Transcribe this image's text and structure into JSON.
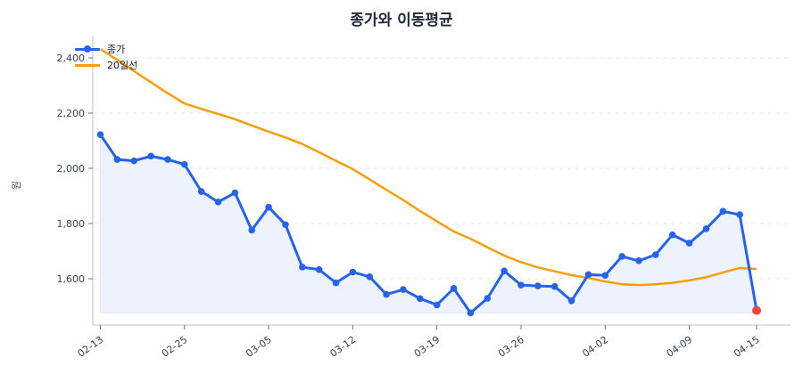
{
  "title": "종가와 이동평균",
  "legend": {
    "items": [
      {
        "label": "종가",
        "color": "#2563eb",
        "marker": "circle"
      },
      {
        "label": "20일선",
        "color": "#f59e0b",
        "marker": "none"
      }
    ]
  },
  "colors": {
    "close": "#2563eb",
    "ma": "#f59e0b",
    "fill": "#eef2fd",
    "last_point": "#ef4444",
    "grid": "#e5e7eb",
    "axis": "#d1d5db"
  },
  "chart_data": {
    "type": "line",
    "title": "종가와 이동평균",
    "xlabel": "",
    "ylabel": "원",
    "ylim": [
      1440,
      2480
    ],
    "yticks": [
      1600,
      1800,
      2000,
      2200,
      2400
    ],
    "ytick_labels": [
      "1,600",
      "1,800",
      "2,000",
      "2,200",
      "2,400"
    ],
    "xtick_labels": [
      "02-13",
      "02-25",
      "03-05",
      "03-12",
      "03-19",
      "03-26",
      "04-02",
      "04-09",
      "04-15"
    ],
    "xtick_index": [
      0,
      5,
      10,
      15,
      20,
      25,
      30,
      35,
      39
    ],
    "grid": true,
    "grid_axis": "y",
    "legend_position": "upper left",
    "series": [
      {
        "name": "종가",
        "type": "line-marker-area",
        "values": [
          2122,
          2032,
          2027,
          2044,
          2032,
          2014,
          1916,
          1878,
          1911,
          1776,
          1859,
          1796,
          1642,
          1633,
          1585,
          1624,
          1607,
          1543,
          1561,
          1528,
          1505,
          1565,
          1476,
          1529,
          1628,
          1577,
          1574,
          1572,
          1520,
          1615,
          1612,
          1681,
          1665,
          1687,
          1759,
          1729,
          1781,
          1844,
          1832,
          1485
        ]
      },
      {
        "name": "20일선",
        "type": "line",
        "values": [
          2432,
          2393,
          2352,
          2312,
          2272,
          2235,
          2215,
          2197,
          2178,
          2155,
          2133,
          2112,
          2088,
          2058,
          2027,
          1997,
          1960,
          1922,
          1885,
          1845,
          1808,
          1771,
          1745,
          1714,
          1684,
          1660,
          1641,
          1627,
          1613,
          1603,
          1590,
          1580,
          1577,
          1580,
          1585,
          1594,
          1605,
          1623,
          1639,
          1635
        ]
      }
    ],
    "annotations": [
      {
        "type": "highlight-last-point",
        "index": 39,
        "value": 1485,
        "color": "#ef4444"
      }
    ]
  }
}
